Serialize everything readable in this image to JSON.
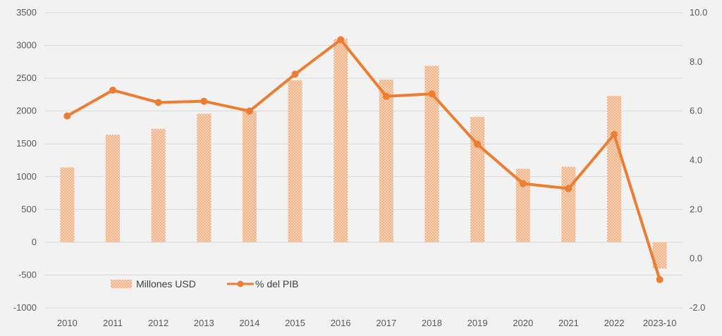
{
  "chart_data": {
    "type": "bar",
    "categories": [
      "2010",
      "2011",
      "2012",
      "2013",
      "2014",
      "2015",
      "2016",
      "2017",
      "2018",
      "2019",
      "2020",
      "2021",
      "2022",
      "2023-10"
    ],
    "series": [
      {
        "name": "Millones USD",
        "type": "bar",
        "axis": "left",
        "values": [
          1140,
          1640,
          1730,
          1960,
          2000,
          2470,
          3100,
          2480,
          2690,
          1910,
          1120,
          1150,
          2230,
          -400
        ]
      },
      {
        "name": "% del PIB",
        "type": "line",
        "axis": "right",
        "values": [
          5.8,
          6.85,
          6.35,
          6.4,
          6.0,
          7.5,
          8.9,
          6.6,
          6.7,
          4.65,
          3.05,
          2.85,
          5.05,
          -0.85
        ]
      }
    ],
    "ylim": [
      -1000,
      3500
    ],
    "y2lim": [
      -2.0,
      10.0
    ],
    "left_ticks": [
      "-1000",
      "-500",
      "0",
      "500",
      "1000",
      "1500",
      "2000",
      "2500",
      "3000",
      "3500"
    ],
    "right_ticks": [
      "-2.0",
      "0.0",
      "2.0",
      "4.0",
      "6.0",
      "8.0",
      "10.0"
    ],
    "grid": true,
    "legend_position": "lower-left",
    "colors": {
      "bar": "#f4b183",
      "line": "#ed7d31",
      "grid": "#d9d9d9",
      "background": "#f2f2f2"
    }
  }
}
